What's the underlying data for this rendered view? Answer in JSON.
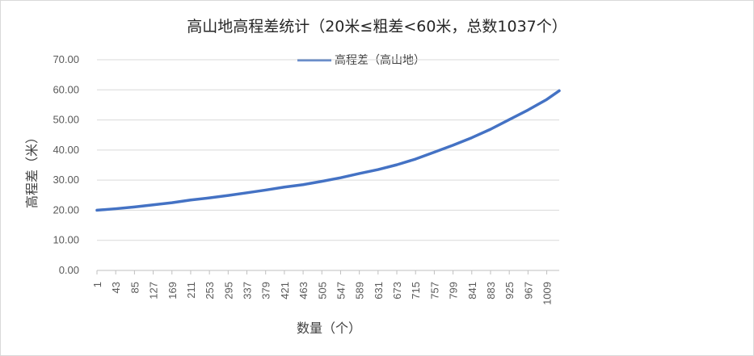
{
  "chart_data": {
    "type": "line",
    "title": "高山地高程差统计（20米≤粗差<60米，总数1037个）",
    "xlabel": "数量（个）",
    "ylabel": "高程差（米）",
    "ylim": [
      0,
      70
    ],
    "yticks": [
      "0.00",
      "10.00",
      "20.00",
      "30.00",
      "40.00",
      "50.00",
      "60.00",
      "70.00"
    ],
    "xlim": [
      1,
      1037
    ],
    "xticks": [
      "1",
      "43",
      "85",
      "127",
      "169",
      "211",
      "253",
      "295",
      "337",
      "379",
      "421",
      "463",
      "505",
      "547",
      "589",
      "631",
      "673",
      "715",
      "757",
      "799",
      "841",
      "883",
      "925",
      "967",
      "1009"
    ],
    "grid": true,
    "legend_position": "top",
    "series": [
      {
        "name": "高程差（高山地）",
        "color": "#4472c4",
        "x": [
          1,
          43,
          85,
          127,
          169,
          211,
          253,
          295,
          337,
          379,
          421,
          463,
          505,
          547,
          589,
          631,
          673,
          715,
          757,
          799,
          841,
          883,
          925,
          967,
          1009,
          1037
        ],
        "values": [
          20.0,
          20.5,
          21.1,
          21.8,
          22.5,
          23.4,
          24.1,
          24.9,
          25.8,
          26.7,
          27.7,
          28.5,
          29.6,
          30.8,
          32.2,
          33.5,
          35.1,
          37.0,
          39.3,
          41.6,
          44.1,
          46.9,
          50.1,
          53.3,
          56.8,
          59.7
        ]
      }
    ]
  }
}
